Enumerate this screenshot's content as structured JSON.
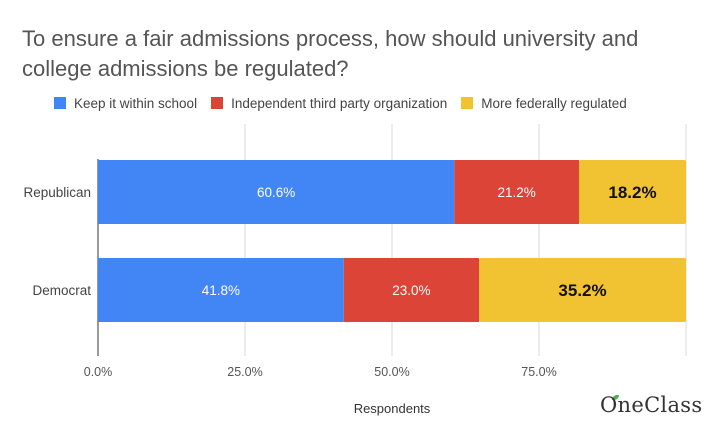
{
  "chart_data": {
    "type": "bar",
    "orientation": "horizontal",
    "stacked": true,
    "title": "To ensure a fair admissions process, how should university and college admissions be regulated?",
    "xlabel": "Respondents",
    "categories": [
      "Republican",
      "Democrat"
    ],
    "series": [
      {
        "name": "Keep it within school",
        "color": "#4285f4",
        "values": [
          60.6,
          41.8
        ],
        "labels": [
          "60.6%",
          "41.8%"
        ]
      },
      {
        "name": "Independent third party organization",
        "color": "#db4437",
        "values": [
          21.2,
          23.0
        ],
        "labels": [
          "21.2%",
          "23.0%"
        ]
      },
      {
        "name": "More federally regulated",
        "color": "#f1c232",
        "values": [
          18.2,
          35.2
        ],
        "labels": [
          "18.2%",
          "35.2%"
        ]
      }
    ],
    "x_ticks": [
      "0.0%",
      "25.0%",
      "50.0%",
      "75.0%"
    ],
    "x_tick_values": [
      0,
      25,
      50,
      75
    ],
    "xlim": [
      0,
      100
    ],
    "grid": true,
    "legend_position": "top"
  },
  "logo": {
    "text": "OneClass"
  }
}
